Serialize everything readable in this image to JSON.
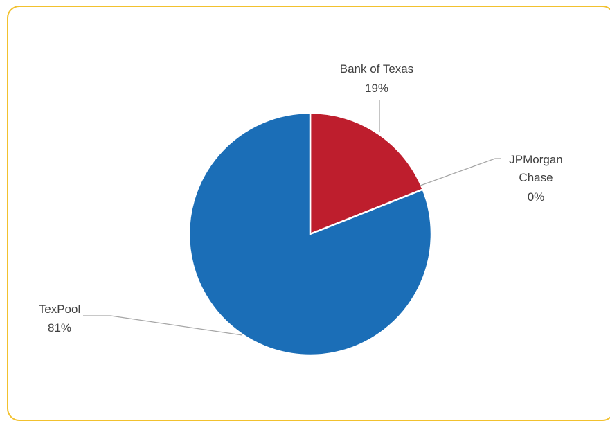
{
  "chart_data": {
    "type": "pie",
    "title": "",
    "series": [
      {
        "values": [
          19,
          0,
          81
        ],
        "categories": [
          "Bank of Texas",
          "JPMorgan Chase",
          "TexPool"
        ],
        "data_labels": [
          "19%",
          "0%",
          "81%"
        ]
      }
    ],
    "categories": [
      "Bank of Texas",
      "JPMorgan Chase",
      "TexPool"
    ],
    "values": [
      19,
      0,
      81
    ],
    "colors": [
      "#be1e2d",
      "#7a7a7a",
      "#1b6eb7"
    ],
    "legend": "none",
    "frame_color": "#f2c12e"
  },
  "labels": {
    "bank_of_texas": {
      "name": "Bank of Texas",
      "pct": "19%"
    },
    "jpmorgan": {
      "name_line1": "JPMorgan",
      "name_line2": "Chase",
      "pct": "0%"
    },
    "texpool": {
      "name": "TexPool",
      "pct": "81%"
    }
  }
}
